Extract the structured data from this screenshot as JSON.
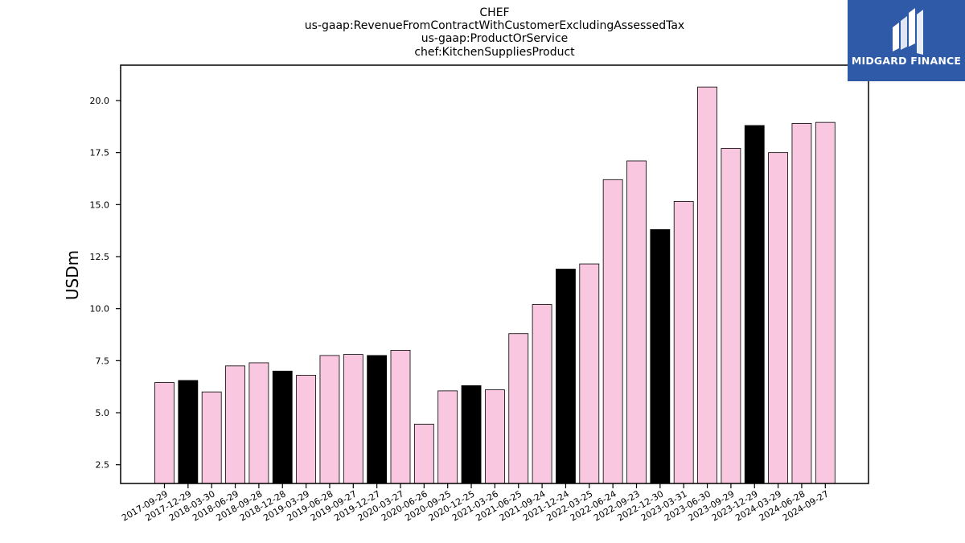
{
  "chart_data": {
    "type": "bar",
    "title_lines": [
      "CHEF",
      "us-gaap:RevenueFromContractWithCustomerExcludingAssessedTax",
      "us-gaap:ProductOrService",
      "chef:KitchenSuppliesProduct"
    ],
    "xlabel": "",
    "ylabel": "USDm",
    "ylim": [
      1.6,
      21.7
    ],
    "yticks": [
      "2.5",
      "5.0",
      "7.5",
      "10.0",
      "12.5",
      "15.0",
      "17.5",
      "20.0"
    ],
    "grid": false,
    "categories": [
      "2017-09-29",
      "2017-12-29",
      "2018-03-30",
      "2018-06-29",
      "2018-09-28",
      "2018-12-28",
      "2019-03-29",
      "2019-06-28",
      "2019-09-27",
      "2019-12-27",
      "2020-03-27",
      "2020-06-26",
      "2020-09-25",
      "2020-12-25",
      "2021-03-26",
      "2021-06-25",
      "2021-09-24",
      "2021-12-24",
      "2022-03-25",
      "2022-06-24",
      "2022-09-23",
      "2022-12-30",
      "2023-03-31",
      "2023-06-30",
      "2023-09-29",
      "2023-12-29",
      "2024-03-29",
      "2024-06-28",
      "2024-09-27"
    ],
    "values": [
      6.45,
      6.55,
      6.0,
      7.25,
      7.4,
      7.0,
      6.8,
      7.75,
      7.8,
      7.75,
      8.0,
      4.45,
      6.05,
      6.3,
      6.1,
      8.8,
      10.2,
      11.9,
      12.15,
      16.2,
      17.1,
      13.8,
      15.15,
      20.65,
      17.7,
      18.8,
      17.5,
      18.9,
      18.95
    ],
    "highlight": [
      false,
      true,
      false,
      false,
      false,
      true,
      false,
      false,
      false,
      true,
      false,
      false,
      false,
      true,
      false,
      false,
      false,
      true,
      false,
      false,
      false,
      true,
      false,
      false,
      false,
      true,
      false,
      false,
      false
    ],
    "colors": {
      "bar": "#f9c8e0",
      "highlight": "#000000",
      "edge": "#000000"
    }
  },
  "logo": {
    "text": "MIDGARD FINANCE",
    "bg": "#2f5aa8"
  }
}
